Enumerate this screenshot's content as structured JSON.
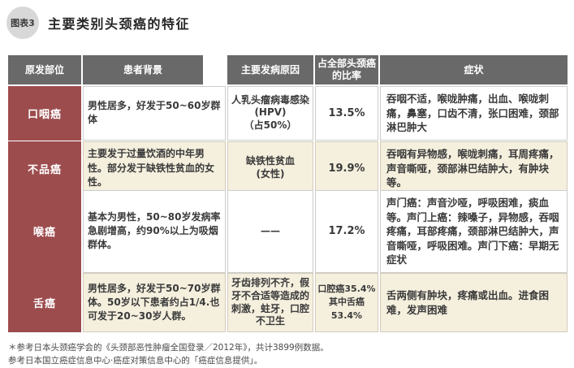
{
  "title": {
    "badge": "图表3",
    "text": "主要类别头颈癌的特征"
  },
  "table": {
    "headers": {
      "site": "原发部位",
      "background": "患者背景",
      "cause": "主要发病原因",
      "ratio": "占全部头颈癌的比率",
      "symptoms": "症状"
    },
    "rows": [
      {
        "site": "口咽癌",
        "background": "男性居多，好发于50~60岁群体",
        "cause": "人乳头瘤病毒感染\n(HPV)\n（占50%）",
        "ratio": "13.5%",
        "symptoms": "吞咽不适，喉咙肿痛，出血、喉咙刺痛，鼻塞，口齿不清，张口困难，颈部淋巴肿大"
      },
      {
        "site": "不品癌",
        "background": "主要发于过量饮酒的中年男性。部分发于缺铁性贫血的女性。",
        "cause": "缺铁性贫血\n(女性)",
        "ratio": "19.9%",
        "symptoms": "吞咽有异物感，喉咙刺痛，耳周疼痛，声音嘶哑，颈部淋巴结肿大，有肿块等。"
      },
      {
        "site": "喉癌",
        "background": "基本为男性，50~80岁发病率急剧增高，约90%以上为吸烟群体。",
        "cause": "——",
        "ratio": "17.2%",
        "symptoms": "声门癌：声音沙哑，呼吸困难，痰血等。声门上癌：辣嗓子，异物感，吞咽疼痛，耳部疼痛，颈部淋巴结肿大，声音嘶哑，呼吸困难。声门下癌：早期无症状"
      },
      {
        "site": "舌癌",
        "background": "男性居多，好发于50~70岁群体。50岁以下患者约占1/4.也可发于20~30岁人群。",
        "cause": "牙齿排列不齐，假牙不合适等造成的刺激，蛀牙，口腔不卫生",
        "ratio": "口腔癌35.4%\n其中舌癌53.4%",
        "symptoms": "舌两侧有肿块，疼痛或出血。进食困难，发声困难"
      }
    ]
  },
  "notes": {
    "line1": "＊参考日本头颈癌学会的《头颈部恶性肿瘤全国登录／2012年》，共计3899例数据。",
    "line2": "参考日本国立癌症信息中心·癌症对策信息中心的「癌症信息提供」。"
  },
  "colors": {
    "header_gray": "#696969",
    "site_red": "#9d4c4e",
    "row_cream": "#f5efde",
    "row_white": "#ffffff",
    "badge_gray": "#d8d8d8"
  }
}
